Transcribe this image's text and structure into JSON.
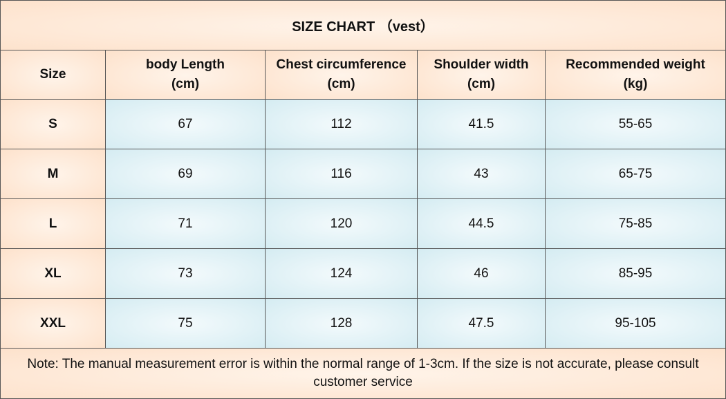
{
  "title": "SIZE CHART （vest）",
  "table": {
    "header": [
      [
        "Size"
      ],
      [
        "body Length",
        "(cm)"
      ],
      [
        "Chest circumference",
        "(cm)"
      ],
      [
        "Shoulder width",
        "(cm)"
      ],
      [
        "Recommended weight",
        "(kg)"
      ]
    ],
    "rows": [
      [
        "S",
        67,
        112,
        41.5,
        "55-65"
      ],
      [
        "M",
        69,
        116,
        43,
        "65-75"
      ],
      [
        "L",
        71,
        120,
        44.5,
        "75-85"
      ],
      [
        "XL",
        73,
        124,
        46,
        "85-95"
      ],
      [
        "XXL",
        75,
        128,
        47.5,
        "95-105"
      ]
    ]
  },
  "note": "Note: The manual measurement error is within the normal range of 1-3cm. If the size is not accurate, please consult customer service"
}
